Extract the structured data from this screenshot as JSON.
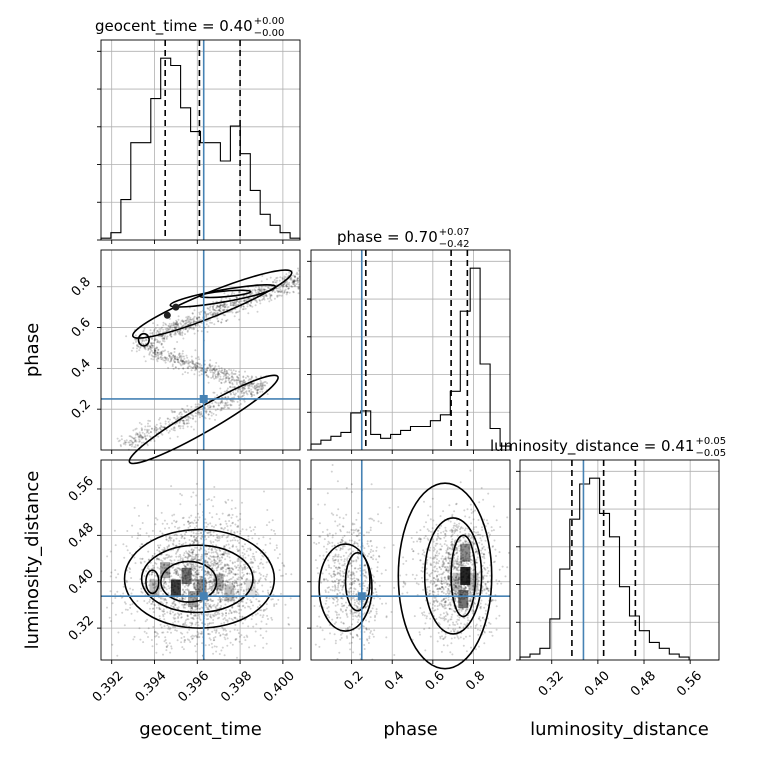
{
  "chart_data": {
    "type": "corner",
    "parameters": [
      "geocent_time",
      "phase",
      "luminosity_distance"
    ],
    "truths": [
      0.3963,
      0.25,
      0.375
    ],
    "truth_color": "#4682b4",
    "panels": {
      "geocent_time": {
        "title": "geocent_time = 0.40",
        "title_plus": "+0.00",
        "title_minus": "−0.00",
        "xlim": [
          0.3915,
          0.4008
        ],
        "ticks": [
          0.392,
          0.394,
          0.396,
          0.398,
          0.4
        ],
        "tick_labels": [
          "0.392",
          "0.394",
          "0.396",
          "0.398",
          "0.400"
        ],
        "hist_edges_start": 0.3915,
        "hist_bin_width": 0.000465,
        "hist_counts": [
          1,
          4,
          22,
          53,
          53,
          77,
          99,
          95,
          72,
          59,
          53,
          53,
          43,
          62,
          47,
          27,
          14,
          8,
          4,
          1
        ],
        "quantiles": [
          0.3945,
          0.3961,
          0.398
        ]
      },
      "phase": {
        "title": "phase = 0.70",
        "title_plus": "+0.07",
        "title_minus": "−0.42",
        "xlim": [
          0.0,
          0.98
        ],
        "ticks": [
          0.2,
          0.4,
          0.6,
          0.8
        ],
        "tick_labels": [
          "0.2",
          "0.4",
          "0.6",
          "0.8"
        ],
        "hist_edges_start": 0.0,
        "hist_bin_width": 0.049,
        "hist_counts": [
          3,
          5,
          7,
          9,
          19,
          20,
          8,
          6,
          8,
          10,
          12,
          12,
          15,
          18,
          30,
          71,
          93,
          44,
          11,
          2
        ],
        "quantiles": [
          0.27,
          0.69,
          0.77
        ]
      },
      "luminosity_distance": {
        "title": "luminosity_distance = 0.41",
        "title_plus": "+0.05",
        "title_minus": "−0.05",
        "xlim": [
          0.265,
          0.61
        ],
        "ticks": [
          0.32,
          0.4,
          0.48,
          0.56
        ],
        "tick_labels": [
          "0.32",
          "0.40",
          "0.48",
          "0.56"
        ],
        "hist_edges_start": 0.265,
        "hist_bin_width": 0.01725,
        "hist_counts": [
          1,
          2,
          4,
          14,
          31,
          48,
          60,
          62,
          50,
          42,
          25,
          15,
          10,
          6,
          4,
          2,
          1,
          0,
          0,
          0
        ],
        "quantiles": [
          0.355,
          0.41,
          0.465
        ]
      }
    },
    "y_ticks": {
      "phase": {
        "ticks": [
          0.2,
          0.4,
          0.6,
          0.8
        ],
        "labels": [
          "0.2",
          "0.4",
          "0.6",
          "0.8"
        ],
        "ylim": [
          0.0,
          0.98
        ]
      },
      "luminosity_distance": {
        "ticks": [
          0.32,
          0.4,
          0.48,
          0.56
        ],
        "labels": [
          "0.32",
          "0.40",
          "0.48",
          "0.56"
        ],
        "ylim": [
          0.265,
          0.61
        ]
      }
    },
    "axis_labels": {
      "x": [
        "geocent_time",
        "phase",
        "luminosity_distance"
      ],
      "y": [
        "phase",
        "luminosity_distance"
      ]
    },
    "grid": true
  }
}
